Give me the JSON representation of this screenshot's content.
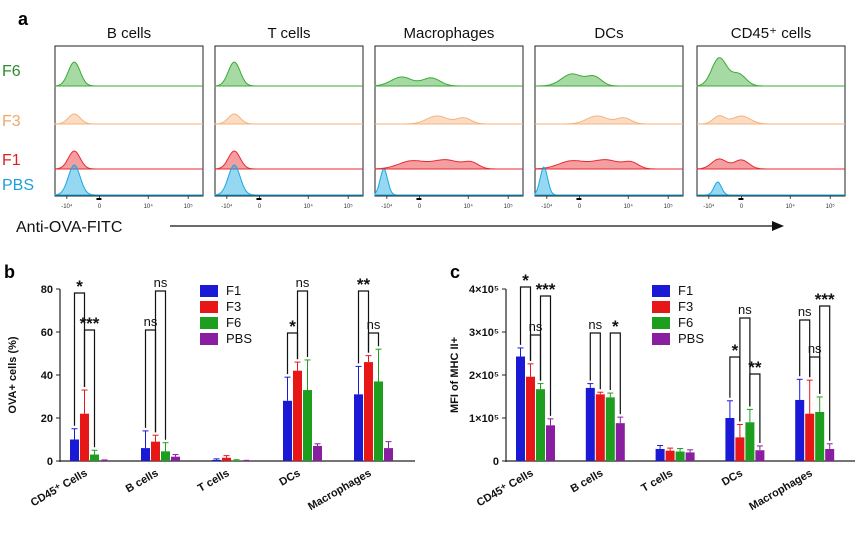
{
  "colors": {
    "F1": "#e8292e",
    "F3": "#f5b37c",
    "F6": "#3aaa35",
    "PBS": "#17a9e0",
    "barF1": "#1a1ad6",
    "barF3": "#e81717",
    "barF6": "#1e9e1e",
    "barPBS": "#8a1ea0",
    "labelF6": "#2e8b2e",
    "labelF3": "#f0a868",
    "labelF1": "#e02020",
    "labelPBS": "#1aa0dc"
  },
  "panel_a": {
    "letter": "a",
    "x_axis_label": "Anti-OVA-FITC",
    "row_labels": [
      "F6",
      "F3",
      "F1",
      "PBS"
    ],
    "tick_labels": [
      "-10⁴",
      "0",
      "10⁴",
      "10⁵"
    ],
    "panels": [
      {
        "title": "B cells",
        "mode": "left"
      },
      {
        "title": "T cells",
        "mode": "left"
      },
      {
        "title": "Macrophages",
        "mode": "spread"
      },
      {
        "title": "DCs",
        "mode": "spread"
      },
      {
        "title": "CD45⁺ cells",
        "mode": "mixed"
      }
    ]
  },
  "chart_data": [
    {
      "type": "bar",
      "panel": "b",
      "ylabel": "OVA+ cells (%)",
      "ylim": [
        0,
        80
      ],
      "yticks": [
        "0",
        "20",
        "40",
        "60",
        "80"
      ],
      "categories": [
        "CD45⁺ Cells",
        "B cells",
        "T cells",
        "DCs",
        "Macrophages"
      ],
      "legend": [
        "F1",
        "F3",
        "F6",
        "PBS"
      ],
      "series": [
        {
          "name": "F1",
          "values": [
            10,
            6,
            0.5,
            28,
            31
          ],
          "errors": [
            5,
            8,
            0.5,
            11,
            13
          ]
        },
        {
          "name": "F3",
          "values": [
            22,
            9,
            1.5,
            42,
            46
          ],
          "errors": [
            11,
            3,
            1,
            4,
            3
          ]
        },
        {
          "name": "F6",
          "values": [
            3,
            4.5,
            0.3,
            33,
            37
          ],
          "errors": [
            2,
            4,
            0.3,
            14,
            15
          ]
        },
        {
          "name": "PBS",
          "values": [
            0.3,
            2,
            0.2,
            7,
            6
          ],
          "errors": [
            0.2,
            1,
            0.1,
            1,
            3
          ]
        }
      ],
      "annotations": [
        {
          "label": "*"
        },
        {
          "label": "***"
        },
        {
          "label": "ns"
        },
        {
          "label": "ns"
        },
        {
          "label": "*"
        },
        {
          "label": "ns"
        },
        {
          "label": "**"
        },
        {
          "label": "ns"
        }
      ]
    },
    {
      "type": "bar",
      "panel": "c",
      "ylabel": "MFI of MHC II+",
      "ylim": [
        0,
        400000
      ],
      "yticks": [
        "0",
        "1×10⁵",
        "2×10⁵",
        "3×10⁵",
        "4×10⁵"
      ],
      "categories": [
        "CD45⁺ Cells",
        "B cells",
        "T cells",
        "DCs",
        "Macrophages"
      ],
      "legend": [
        "F1",
        "F3",
        "F6",
        "PBS"
      ],
      "series": [
        {
          "name": "F1",
          "values": [
            243000,
            170000,
            28000,
            100000,
            142000
          ],
          "errors": [
            20000,
            10000,
            8000,
            40000,
            48000
          ]
        },
        {
          "name": "F3",
          "values": [
            196000,
            155000,
            24000,
            55000,
            110000
          ],
          "errors": [
            30000,
            5000,
            6000,
            30000,
            78000
          ]
        },
        {
          "name": "F6",
          "values": [
            167000,
            148000,
            22000,
            90000,
            114000
          ],
          "errors": [
            13000,
            10000,
            7000,
            30000,
            35000
          ]
        },
        {
          "name": "PBS",
          "values": [
            83000,
            88000,
            20000,
            25000,
            28000
          ],
          "errors": [
            15000,
            14000,
            6000,
            10000,
            12000
          ]
        }
      ],
      "annotations": [
        {
          "label": "*"
        },
        {
          "label": "ns"
        },
        {
          "label": "***"
        },
        {
          "label": "ns"
        },
        {
          "label": "*"
        },
        {
          "label": "ns"
        },
        {
          "label": "*"
        },
        {
          "label": "**"
        },
        {
          "label": "ns"
        },
        {
          "label": "ns"
        },
        {
          "label": "***"
        }
      ]
    }
  ]
}
